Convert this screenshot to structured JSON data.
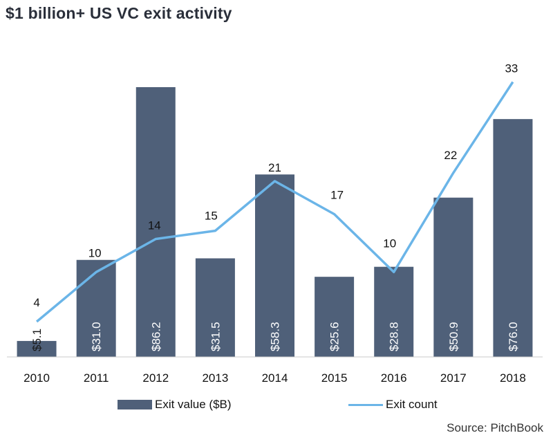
{
  "chart_data": {
    "type": "bar",
    "title": "$1 billion+ US VC exit activity",
    "categories": [
      "2010",
      "2011",
      "2012",
      "2013",
      "2014",
      "2015",
      "2016",
      "2017",
      "2018"
    ],
    "series": [
      {
        "name": "Exit value ($B)",
        "type": "bar",
        "values": [
          5.1,
          31.0,
          86.2,
          31.5,
          58.3,
          25.6,
          28.8,
          50.9,
          76.0
        ],
        "labels": [
          "$5.1",
          "$31.0",
          "$86.2",
          "$31.5",
          "$58.3",
          "$25.6",
          "$28.8",
          "$50.9",
          "$76.0"
        ],
        "color": "#4f6079"
      },
      {
        "name": "Exit count",
        "type": "line",
        "values": [
          4,
          10,
          14,
          15,
          21,
          17,
          10,
          22,
          33
        ],
        "labels": [
          "4",
          "10",
          "14",
          "15",
          "21",
          "17",
          "10",
          "22",
          "33"
        ],
        "color": "#6bb5e8"
      }
    ],
    "y_left_range": [
      0,
      86.2
    ],
    "y_right_range": [
      0,
      35
    ],
    "grid": false,
    "legend_placement": "bottom",
    "source": "Source: PitchBook"
  }
}
